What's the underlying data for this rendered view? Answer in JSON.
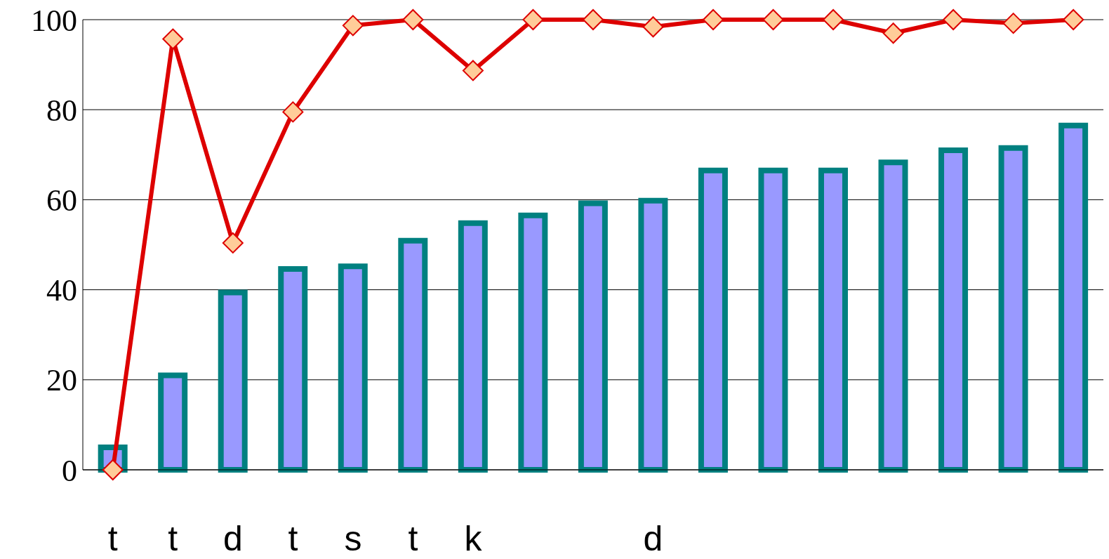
{
  "chart_data": {
    "type": "bar",
    "categories": [
      "t",
      "t",
      "d",
      "t",
      "s",
      "t",
      "k",
      null,
      null,
      "d",
      null,
      null,
      null,
      null,
      null,
      null,
      null
    ],
    "series": [
      {
        "color": "#9999ff",
        "values": [
          5,
          21,
          39.4,
          44.6,
          45.2,
          50.9,
          54.8,
          56.5,
          59.2,
          59.8,
          66.5,
          66.5,
          66.5,
          68.3,
          71,
          71.5,
          76.5
        ]
      },
      {
        "type": "line",
        "color": "#dd0000",
        "marker": "diamond",
        "values": [
          0,
          95.7,
          50.4,
          79.5,
          98.7,
          100,
          88.7,
          100,
          100,
          98.4,
          100,
          100,
          100,
          97,
          100,
          99.2,
          100
        ]
      }
    ],
    "ylim": [
      0,
      100
    ],
    "yticks": [
      0,
      20,
      40,
      60,
      80,
      100
    ],
    "grid": "y"
  }
}
